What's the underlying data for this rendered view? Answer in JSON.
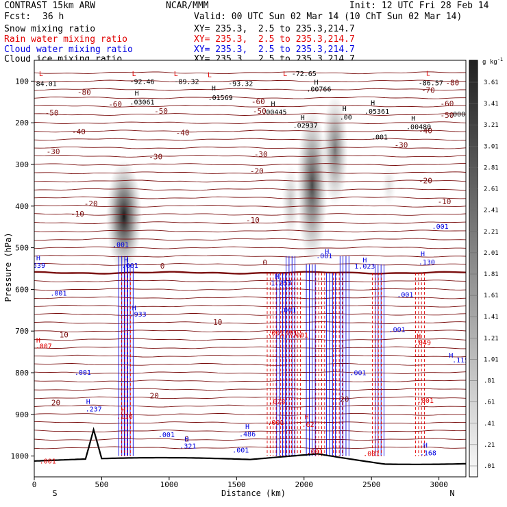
{
  "header": {
    "model": "CONTRAST 15km ARW",
    "org": "NCAR/MMM",
    "init": "Init: 12 UTC Fri 28 Feb 14",
    "fcst_label": "Fcst:",
    "fcst_value": "36 h",
    "valid": "Valid: 00 UTC Sun 02 Mar 14 (10 ChT Sun 02 Mar 14)"
  },
  "legend": [
    {
      "name": "Snow mixing ratio",
      "color": "#000000",
      "xy": ""
    },
    {
      "name": "Rain water mixing ratio",
      "color": "#e00000",
      "xy": "XY= 235.3,  2.5 to 235.3,214.7"
    },
    {
      "name": "Cloud water mixing ratio",
      "color": "#0000e0",
      "xy": "XY= 235.3,  2.5 to 235.3,214.7"
    },
    {
      "name": "Cloud ice mixing ratio",
      "color": "#000000",
      "xy": "XY= 235.3,  2.5 to 235.3,214.7"
    }
  ],
  "header_xy": "XY= 235.3,  2.5 to 235.3,214.7",
  "colorbar": {
    "unit": "g kg",
    "unit_sup": "-1",
    "labels": [
      "3.61",
      "3.41",
      "3.21",
      "3.01",
      "2.81",
      "2.61",
      "2.41",
      "2.21",
      "2.01",
      "1.81",
      "1.61",
      "1.41",
      "1.21",
      "1.01",
      ".81",
      ".61",
      ".41",
      ".21",
      ".01"
    ]
  },
  "chart_data": {
    "type": "cross-section",
    "xlabel": "Distance (km)",
    "ylabel": "Pressure (hPa)",
    "xlim": [
      0,
      3200
    ],
    "ylim": [
      1050,
      50
    ],
    "xticks": [
      0,
      500,
      1000,
      1500,
      2000,
      2500,
      3000
    ],
    "yticks": [
      100,
      200,
      300,
      400,
      500,
      600,
      700,
      800,
      900,
      1000
    ],
    "end_labels": {
      "left": "S",
      "right": "N"
    },
    "temperature_labels": [
      {
        "text": "-80",
        "x": 370,
        "p": 133
      },
      {
        "text": "-80",
        "x": 3100,
        "p": 110
      },
      {
        "text": "-70",
        "x": 2920,
        "p": 128
      },
      {
        "text": "-60",
        "x": 600,
        "p": 162
      },
      {
        "text": "-60",
        "x": 1660,
        "p": 155
      },
      {
        "text": "-60",
        "x": 3060,
        "p": 160
      },
      {
        "text": "-50",
        "x": 130,
        "p": 182
      },
      {
        "text": "-50",
        "x": 940,
        "p": 178
      },
      {
        "text": "-50",
        "x": 1670,
        "p": 178
      },
      {
        "text": "-50",
        "x": 3060,
        "p": 188
      },
      {
        "text": "-40",
        "x": 330,
        "p": 228
      },
      {
        "text": "-40",
        "x": 1100,
        "p": 230
      },
      {
        "text": "-40",
        "x": 2900,
        "p": 225
      },
      {
        "text": "-30",
        "x": 140,
        "p": 275
      },
      {
        "text": "-30",
        "x": 900,
        "p": 288
      },
      {
        "text": "-30",
        "x": 1680,
        "p": 282
      },
      {
        "text": "-30",
        "x": 2720,
        "p": 260
      },
      {
        "text": "-20",
        "x": 1650,
        "p": 322
      },
      {
        "text": "-20",
        "x": 2900,
        "p": 345
      },
      {
        "text": "-20",
        "x": 420,
        "p": 400
      },
      {
        "text": "-10",
        "x": 320,
        "p": 425
      },
      {
        "text": "-10",
        "x": 1620,
        "p": 440
      },
      {
        "text": "-10",
        "x": 3040,
        "p": 395
      },
      {
        "text": "0",
        "x": 950,
        "p": 550
      },
      {
        "text": "0",
        "x": 1710,
        "p": 542
      },
      {
        "text": "10",
        "x": 220,
        "p": 715
      },
      {
        "text": "10",
        "x": 1360,
        "p": 685
      },
      {
        "text": "20",
        "x": 160,
        "p": 878
      },
      {
        "text": "20",
        "x": 890,
        "p": 862
      },
      {
        "text": "20",
        "x": 2300,
        "p": 870
      },
      {
        "text": "0",
        "x": 1130,
        "p": 965
      }
    ],
    "extrema_labels": [
      {
        "text": "L",
        "x": 50,
        "p": 88,
        "color": "#e00000"
      },
      {
        "text": "84.01",
        "x": 90,
        "p": 112,
        "color": "#000000"
      },
      {
        "text": "L",
        "x": 740,
        "p": 88,
        "color": "#e00000"
      },
      {
        "text": "-92.46",
        "x": 800,
        "p": 107,
        "color": "#000000"
      },
      {
        "text": "L",
        "x": 1050,
        "p": 88,
        "color": "#e00000"
      },
      {
        "text": "-89.32",
        "x": 1130,
        "p": 107,
        "color": "#000000"
      },
      {
        "text": "L",
        "x": 1300,
        "p": 90,
        "color": "#e00000"
      },
      {
        "text": "-93.32",
        "x": 1530,
        "p": 112,
        "color": "#000000"
      },
      {
        "text": "L",
        "x": 1860,
        "p": 88,
        "color": "#e00000"
      },
      {
        "text": "-72.65",
        "x": 2000,
        "p": 88,
        "color": "#000000"
      },
      {
        "text": "L",
        "x": 2920,
        "p": 87,
        "color": "#e00000"
      },
      {
        "text": "-86.57",
        "x": 2940,
        "p": 110,
        "color": "#000000"
      },
      {
        "text": "H",
        "x": 760,
        "p": 135,
        "color": "#000000"
      },
      {
        "text": ".03061",
        "x": 800,
        "p": 156,
        "color": "#000000"
      },
      {
        "text": "H",
        "x": 1330,
        "p": 122,
        "color": "#000000"
      },
      {
        "text": ".01569",
        "x": 1380,
        "p": 145,
        "color": "#000000"
      },
      {
        "text": "H",
        "x": 2090,
        "p": 108,
        "color": "#000000"
      },
      {
        "text": ".00766",
        "x": 2110,
        "p": 125,
        "color": "#000000"
      },
      {
        "text": "H",
        "x": 1770,
        "p": 160,
        "color": "#000000"
      },
      {
        "text": ".00445",
        "x": 1780,
        "p": 180,
        "color": "#000000"
      },
      {
        "text": "H",
        "x": 2510,
        "p": 158,
        "color": "#000000"
      },
      {
        "text": ".05361",
        "x": 2540,
        "p": 178,
        "color": "#000000"
      },
      {
        "text": "H",
        "x": 1990,
        "p": 193,
        "color": "#000000"
      },
      {
        "text": ".02937",
        "x": 2010,
        "p": 212,
        "color": "#000000"
      },
      {
        "text": "H",
        "x": 2300,
        "p": 172,
        "color": "#000000"
      },
      {
        "text": ".00",
        "x": 2310,
        "p": 192,
        "color": "#000000"
      },
      {
        "text": "H",
        "x": 2810,
        "p": 195,
        "color": "#000000"
      },
      {
        "text": ".00480",
        "x": 2850,
        "p": 215,
        "color": "#000000"
      },
      {
        "text": ".001",
        "x": 2560,
        "p": 240,
        "color": "#000000"
      },
      {
        "text": ".0001",
        "x": 3150,
        "p": 185,
        "color": "#000000"
      },
      {
        "text": "H",
        "x": 30,
        "p": 530,
        "color": "#0000e0"
      },
      {
        "text": ".539",
        "x": 20,
        "p": 548,
        "color": "#0000e0"
      },
      {
        "text": ".001",
        "x": 640,
        "p": 498,
        "color": "#0000e0"
      },
      {
        "text": "H",
        "x": 680,
        "p": 535,
        "color": "#0000e0"
      },
      {
        "text": ".001",
        "x": 710,
        "p": 548,
        "color": "#0000e0"
      },
      {
        "text": ".001",
        "x": 180,
        "p": 615,
        "color": "#0000e0"
      },
      {
        "text": "H",
        "x": 740,
        "p": 650,
        "color": "#0000e0"
      },
      {
        "text": ".933",
        "x": 770,
        "p": 665,
        "color": "#0000e0"
      },
      {
        "text": ".001",
        "x": 360,
        "p": 805,
        "color": "#0000e0"
      },
      {
        "text": "H",
        "x": 400,
        "p": 875,
        "color": "#0000e0"
      },
      {
        "text": ".237",
        "x": 440,
        "p": 893,
        "color": "#0000e0"
      },
      {
        "text": ".001",
        "x": 980,
        "p": 955,
        "color": "#0000e0"
      },
      {
        "text": "H",
        "x": 1130,
        "p": 965,
        "color": "#0000e0"
      },
      {
        "text": ".321",
        "x": 1140,
        "p": 982,
        "color": "#0000e0"
      },
      {
        "text": "H",
        "x": 1580,
        "p": 935,
        "color": "#0000e0"
      },
      {
        "text": ".486",
        "x": 1580,
        "p": 953,
        "color": "#0000e0"
      },
      {
        "text": ".001",
        "x": 1530,
        "p": 992,
        "color": "#0000e0"
      },
      {
        "text": "H",
        "x": 1800,
        "p": 575,
        "color": "#0000e0"
      },
      {
        "text": "1.253",
        "x": 1830,
        "p": 590,
        "color": "#0000e0"
      },
      {
        "text": ".001",
        "x": 1880,
        "p": 655,
        "color": "#0000e0"
      },
      {
        "text": "H",
        "x": 2170,
        "p": 515,
        "color": "#0000e0"
      },
      {
        "text": ".001",
        "x": 2150,
        "p": 525,
        "color": "#0000e0"
      },
      {
        "text": "H",
        "x": 2450,
        "p": 535,
        "color": "#0000e0"
      },
      {
        "text": "1.023",
        "x": 2450,
        "p": 550,
        "color": "#0000e0"
      },
      {
        "text": ".001",
        "x": 2750,
        "p": 618,
        "color": "#0000e0"
      },
      {
        "text": ".001",
        "x": 2690,
        "p": 702,
        "color": "#0000e0"
      },
      {
        "text": ".001",
        "x": 2400,
        "p": 806,
        "color": "#0000e0"
      },
      {
        "text": "H",
        "x": 2880,
        "p": 520,
        "color": "#0000e0"
      },
      {
        "text": ".130",
        "x": 2910,
        "p": 540,
        "color": "#0000e0"
      },
      {
        "text": ".001",
        "x": 3010,
        "p": 455,
        "color": "#0000e0"
      },
      {
        "text": "H",
        "x": 3090,
        "p": 764,
        "color": "#0000e0"
      },
      {
        "text": ".115",
        "x": 3160,
        "p": 775,
        "color": "#0000e0"
      },
      {
        "text": "H",
        "x": 2900,
        "p": 980,
        "color": "#0000e0"
      },
      {
        "text": ".168",
        "x": 2920,
        "p": 998,
        "color": "#0000e0"
      },
      {
        "text": ".001",
        "x": 2500,
        "p": 1000,
        "color": "#e00000"
      },
      {
        "text": "H",
        "x": 30,
        "p": 728,
        "color": "#e00000"
      },
      {
        "text": ".007",
        "x": 70,
        "p": 742,
        "color": "#e00000"
      },
      {
        "text": "H",
        "x": 2850,
        "p": 718,
        "color": "#e00000"
      },
      {
        "text": ".049",
        "x": 2880,
        "p": 733,
        "color": "#e00000"
      },
      {
        "text": ".001",
        "x": 2900,
        "p": 872,
        "color": "#e00000"
      },
      {
        "text": "H",
        "x": 660,
        "p": 895,
        "color": "#e00000"
      },
      {
        "text": ".116",
        "x": 670,
        "p": 910,
        "color": "#e00000"
      },
      {
        "text": ".001",
        "x": 1790,
        "p": 710,
        "color": "#e00000"
      },
      {
        "text": ".401",
        "x": 1890,
        "p": 710,
        "color": "#e00000"
      },
      {
        "text": ".028",
        "x": 1800,
        "p": 875,
        "color": "#e00000"
      },
      {
        "text": ".001",
        "x": 1790,
        "p": 925,
        "color": "#e00000"
      },
      {
        "text": "H",
        "x": 2020,
        "p": 912,
        "color": "#e00000"
      },
      {
        "text": ".62",
        "x": 2030,
        "p": 930,
        "color": "#e00000"
      },
      {
        "text": ".001",
        "x": 2080,
        "p": 995,
        "color": "#e00000"
      },
      {
        "text": ".001",
        "x": 1970,
        "p": 715,
        "color": "#e00000"
      },
      {
        "text": ".001",
        "x": 100,
        "p": 1018,
        "color": "#e00000"
      }
    ],
    "shaded_ice_plumes": [
      {
        "x": 665,
        "p_top": 290,
        "p_bottom": 560,
        "max": 3.0
      },
      {
        "x": 2060,
        "p_top": 160,
        "p_bottom": 540,
        "max": 2.4
      },
      {
        "x": 2230,
        "p_top": 130,
        "p_bottom": 400,
        "max": 1.8
      },
      {
        "x": 1900,
        "p_top": 300,
        "p_bottom": 480,
        "max": 0.8
      },
      {
        "x": 2630,
        "p_top": 300,
        "p_bottom": 400,
        "max": 0.4
      }
    ]
  }
}
